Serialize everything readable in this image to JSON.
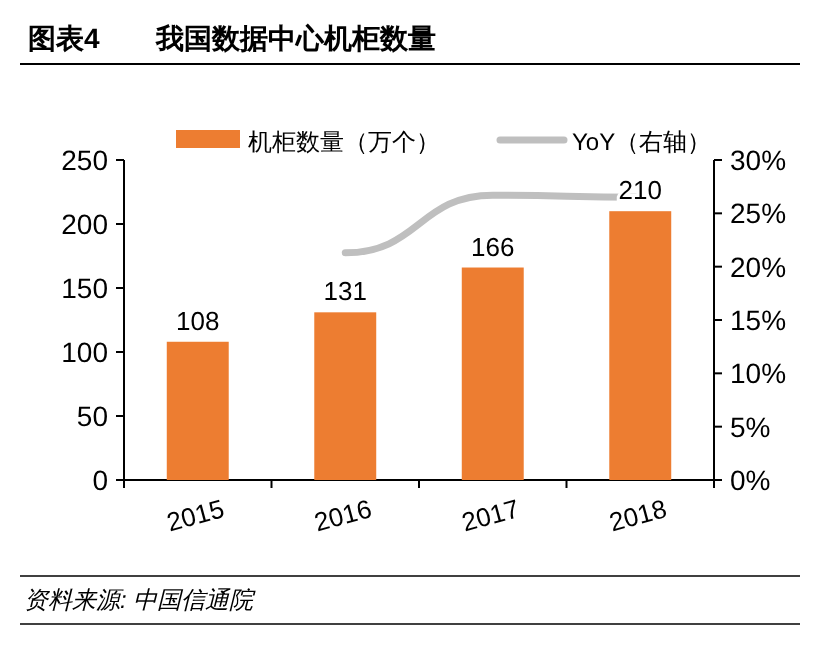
{
  "chart_data": {
    "type": "bar",
    "title": "图表4　　我国数据中心机柜数量",
    "categories": [
      "2015",
      "2016",
      "2017",
      "2018"
    ],
    "series": [
      {
        "name": "机柜数量（万个）",
        "color": "#ed7d31",
        "values": [
          108,
          131,
          166,
          210
        ],
        "value_labels": [
          "108",
          "131",
          "166",
          "210"
        ]
      },
      {
        "name": "YoY（右轴）",
        "type": "line",
        "axis": "y2",
        "color": "#bfbfbf",
        "values": [
          null,
          21.3,
          26.7,
          26.5
        ]
      }
    ],
    "ylim": [
      0,
      250
    ],
    "yticks": [
      0,
      50,
      100,
      150,
      200,
      250
    ],
    "y2lim": [
      0,
      30
    ],
    "y2ticks": [
      {
        "value": 0,
        "label": "0%"
      },
      {
        "value": 5,
        "label": "5%"
      },
      {
        "value": 10,
        "label": "10%"
      },
      {
        "value": 15,
        "label": "15%"
      },
      {
        "value": 20,
        "label": "20%"
      },
      {
        "value": 25,
        "label": "25%"
      },
      {
        "value": 30,
        "label": "30%"
      }
    ],
    "legend": "top",
    "grid": false,
    "annotations": [
      "资料来源: 中国信通院"
    ]
  }
}
